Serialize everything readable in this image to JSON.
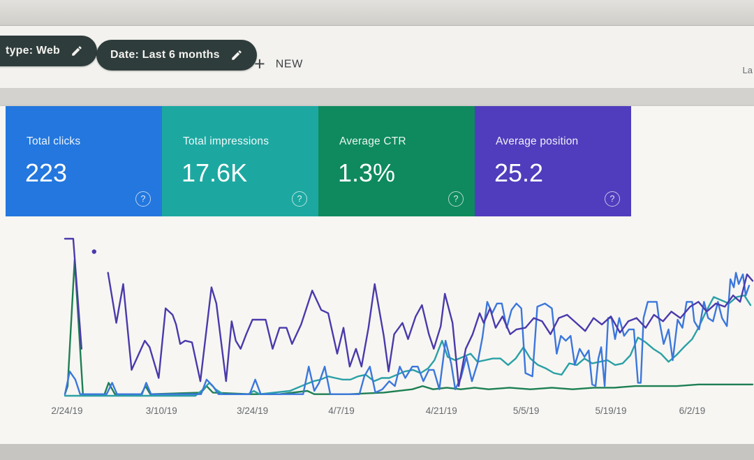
{
  "filter_bar": {
    "search_type_chip_label": "type: Web",
    "date_chip_label": "Date: Last 6 months",
    "new_button_plus": "+",
    "new_button_label": "NEW",
    "right_partial_text": "La"
  },
  "summary_cards": {
    "help_icon_glyph": "?",
    "cards": [
      {
        "label": "Total clicks",
        "value": "223",
        "color": "#2377de"
      },
      {
        "label": "Total impressions",
        "value": "17.6K",
        "color": "#1ca8a1"
      },
      {
        "label": "Average CTR",
        "value": "1.3%",
        "color": "#0e8a5e"
      },
      {
        "label": "Average position",
        "value": "25.2",
        "color": "#4f3dbd"
      }
    ]
  },
  "chart_data": {
    "type": "line",
    "title": "",
    "xlabel": "",
    "ylabel": "",
    "grid": false,
    "legend_position": "none (colors match summary cards)",
    "y_axis_note": "no y axis shown; values are percent of plot height, each series auto-scaled",
    "ylim": [
      0,
      100
    ],
    "x_tick_labels": [
      "2/24/19",
      "3/10/19",
      "3/24/19",
      "4/7/19",
      "4/21/19",
      "5/5/19",
      "5/19/19",
      "6/2/19"
    ],
    "x_tick_positions_pct": [
      1.1,
      14.7,
      27.8,
      40.6,
      55.0,
      67.2,
      79.4,
      91.1
    ],
    "series": [
      {
        "name": "Average CTR",
        "color": "#1d7f52",
        "points": [
          [
            0.8,
            1
          ],
          [
            1.2,
            6
          ],
          [
            2.2,
            84
          ],
          [
            3.4,
            1
          ],
          [
            6.5,
            1
          ],
          [
            7.1,
            8
          ],
          [
            8.0,
            1
          ],
          [
            11.8,
            1
          ],
          [
            12.4,
            6
          ],
          [
            13.1,
            1
          ],
          [
            20.4,
            2
          ],
          [
            21.2,
            6
          ],
          [
            22.1,
            2
          ],
          [
            27.5,
            1
          ],
          [
            31.7,
            1
          ],
          [
            35.7,
            3
          ],
          [
            36.7,
            1
          ],
          [
            41.7,
            1
          ],
          [
            46.7,
            2
          ],
          [
            50.8,
            4
          ],
          [
            52.3,
            6
          ],
          [
            53.8,
            4
          ],
          [
            55.8,
            5
          ],
          [
            57.8,
            4
          ],
          [
            59.8,
            5
          ],
          [
            61.8,
            4
          ],
          [
            64.8,
            5
          ],
          [
            67.8,
            4
          ],
          [
            70.9,
            5
          ],
          [
            73.9,
            4
          ],
          [
            76.9,
            5
          ],
          [
            79.9,
            5
          ],
          [
            82.9,
            6
          ],
          [
            85.9,
            6
          ],
          [
            88.9,
            6
          ],
          [
            92.0,
            7
          ],
          [
            95.0,
            7
          ],
          [
            98.0,
            7
          ],
          [
            99.8,
            7
          ]
        ]
      },
      {
        "name": "Total impressions",
        "color": "#2aa0a4",
        "points": [
          [
            0.8,
            0
          ],
          [
            19.6,
            0
          ],
          [
            20.7,
            4
          ],
          [
            21.6,
            8
          ],
          [
            22.5,
            4
          ],
          [
            23.6,
            1
          ],
          [
            27.2,
            1
          ],
          [
            28.0,
            3
          ],
          [
            28.8,
            1
          ],
          [
            33.2,
            3
          ],
          [
            34.3,
            5
          ],
          [
            35.4,
            7
          ],
          [
            36.6,
            9
          ],
          [
            37.6,
            10
          ],
          [
            38.7,
            12
          ],
          [
            39.7,
            11
          ],
          [
            40.8,
            10
          ],
          [
            41.9,
            10
          ],
          [
            43.0,
            12
          ],
          [
            44.1,
            13
          ],
          [
            45.3,
            9
          ],
          [
            46.4,
            11
          ],
          [
            47.5,
            11
          ],
          [
            48.6,
            13
          ],
          [
            49.7,
            15
          ],
          [
            50.9,
            16
          ],
          [
            52.0,
            14
          ],
          [
            53.1,
            17
          ],
          [
            54.0,
            22
          ],
          [
            55.1,
            34
          ],
          [
            55.9,
            24
          ],
          [
            57.0,
            22
          ],
          [
            58.1,
            24
          ],
          [
            59.2,
            26
          ],
          [
            60.2,
            21
          ],
          [
            61.3,
            22
          ],
          [
            62.4,
            23
          ],
          [
            63.5,
            23
          ],
          [
            64.6,
            19
          ],
          [
            65.7,
            23
          ],
          [
            66.8,
            30
          ],
          [
            67.8,
            23
          ],
          [
            68.9,
            19
          ],
          [
            70.0,
            17
          ],
          [
            71.2,
            14
          ],
          [
            72.3,
            13
          ],
          [
            73.4,
            20
          ],
          [
            74.5,
            19
          ],
          [
            75.6,
            23
          ],
          [
            76.7,
            20
          ],
          [
            77.8,
            21
          ],
          [
            78.9,
            22
          ],
          [
            80.0,
            19
          ],
          [
            81.1,
            20
          ],
          [
            82.2,
            25
          ],
          [
            83.3,
            36
          ],
          [
            84.4,
            33
          ],
          [
            85.5,
            29
          ],
          [
            86.6,
            26
          ],
          [
            87.7,
            21
          ],
          [
            88.8,
            25
          ],
          [
            89.9,
            30
          ],
          [
            91.1,
            35
          ],
          [
            92.0,
            42
          ],
          [
            93.1,
            52
          ],
          [
            94.2,
            61
          ],
          [
            95.3,
            59
          ],
          [
            96.4,
            57
          ],
          [
            97.5,
            61
          ],
          [
            98.6,
            62
          ],
          [
            99.5,
            56
          ]
        ]
      },
      {
        "name": "Total clicks",
        "color": "#3b77dc",
        "points": [
          [
            0.8,
            1
          ],
          [
            1.5,
            15
          ],
          [
            2.3,
            10
          ],
          [
            3.0,
            1
          ],
          [
            6.8,
            1
          ],
          [
            7.6,
            8
          ],
          [
            8.3,
            1
          ],
          [
            11.9,
            1
          ],
          [
            12.5,
            8
          ],
          [
            13.2,
            1
          ],
          [
            20.4,
            1
          ],
          [
            21.2,
            10
          ],
          [
            22.1,
            6
          ],
          [
            22.9,
            1
          ],
          [
            27.4,
            1
          ],
          [
            28.2,
            10
          ],
          [
            29.0,
            1
          ],
          [
            35.1,
            1
          ],
          [
            35.9,
            18
          ],
          [
            36.7,
            3
          ],
          [
            37.4,
            8
          ],
          [
            38.2,
            18
          ],
          [
            39.0,
            1
          ],
          [
            43.2,
            1
          ],
          [
            43.9,
            12
          ],
          [
            44.7,
            18
          ],
          [
            45.5,
            2
          ],
          [
            46.5,
            4
          ],
          [
            47.5,
            9
          ],
          [
            48.3,
            6
          ],
          [
            49.0,
            18
          ],
          [
            49.8,
            11
          ],
          [
            50.8,
            18
          ],
          [
            51.6,
            18
          ],
          [
            52.4,
            9
          ],
          [
            53.2,
            16
          ],
          [
            53.9,
            16
          ],
          [
            54.7,
            4
          ],
          [
            55.6,
            34
          ],
          [
            56.4,
            20
          ],
          [
            57.0,
            4
          ],
          [
            57.8,
            11
          ],
          [
            58.6,
            24
          ],
          [
            59.4,
            9
          ],
          [
            60.2,
            20
          ],
          [
            60.9,
            36
          ],
          [
            61.6,
            58
          ],
          [
            62.3,
            51
          ],
          [
            63.0,
            57
          ],
          [
            63.7,
            57
          ],
          [
            64.4,
            42
          ],
          [
            65.1,
            53
          ],
          [
            65.8,
            57
          ],
          [
            66.5,
            54
          ],
          [
            67.1,
            14
          ],
          [
            68.1,
            12
          ],
          [
            68.8,
            55
          ],
          [
            69.9,
            57
          ],
          [
            70.9,
            54
          ],
          [
            71.6,
            26
          ],
          [
            72.2,
            37
          ],
          [
            72.9,
            34
          ],
          [
            73.6,
            37
          ],
          [
            74.2,
            19
          ],
          [
            74.9,
            29
          ],
          [
            75.6,
            24
          ],
          [
            76.2,
            28
          ],
          [
            76.7,
            7
          ],
          [
            77.2,
            6
          ],
          [
            77.6,
            23
          ],
          [
            78.0,
            30
          ],
          [
            78.5,
            6
          ],
          [
            79.0,
            48
          ],
          [
            79.5,
            48
          ],
          [
            80.0,
            35
          ],
          [
            80.6,
            48
          ],
          [
            81.3,
            37
          ],
          [
            82.0,
            41
          ],
          [
            82.7,
            41
          ],
          [
            83.3,
            8
          ],
          [
            83.7,
            8
          ],
          [
            84.1,
            48
          ],
          [
            84.7,
            58
          ],
          [
            85.4,
            58
          ],
          [
            86.0,
            58
          ],
          [
            86.3,
            48
          ],
          [
            87.0,
            32
          ],
          [
            87.7,
            41
          ],
          [
            88.3,
            22
          ],
          [
            89.0,
            47
          ],
          [
            89.7,
            42
          ],
          [
            90.3,
            58
          ],
          [
            91.1,
            58
          ],
          [
            91.4,
            46
          ],
          [
            92.1,
            41
          ],
          [
            92.8,
            58
          ],
          [
            93.4,
            48
          ],
          [
            94.1,
            46
          ],
          [
            94.8,
            58
          ],
          [
            95.4,
            48
          ],
          [
            96.1,
            43
          ],
          [
            96.6,
            72
          ],
          [
            97.1,
            67
          ],
          [
            97.4,
            76
          ],
          [
            97.8,
            69
          ],
          [
            98.4,
            75
          ],
          [
            98.8,
            62
          ],
          [
            99.3,
            68
          ]
        ]
      },
      {
        "name": "Average position",
        "color": "#4a3aab",
        "points": [
          [
            0.8,
            97
          ],
          [
            2.0,
            97
          ],
          [
            3.2,
            29
          ],
          null,
          [
            5.0,
            89
          ],
          null,
          [
            7.0,
            76
          ],
          [
            8.2,
            45
          ],
          [
            9.2,
            69
          ],
          [
            10.4,
            16
          ],
          [
            12.3,
            34
          ],
          [
            13.0,
            30
          ],
          [
            14.3,
            11
          ],
          [
            15.3,
            54
          ],
          [
            16.3,
            50
          ],
          [
            16.8,
            44
          ],
          [
            17.4,
            32
          ],
          [
            18.1,
            34
          ],
          [
            19.1,
            33
          ],
          [
            20.3,
            9
          ],
          [
            21.9,
            67
          ],
          [
            22.6,
            57
          ],
          [
            24.0,
            9
          ],
          [
            24.8,
            46
          ],
          [
            25.4,
            34
          ],
          [
            26.1,
            29
          ],
          [
            26.9,
            38
          ],
          [
            27.8,
            47
          ],
          [
            28.9,
            47
          ],
          [
            29.7,
            47
          ],
          [
            30.7,
            29
          ],
          [
            31.7,
            42
          ],
          [
            32.7,
            42
          ],
          [
            33.5,
            32
          ],
          [
            34.8,
            44
          ],
          [
            36.4,
            65
          ],
          [
            37.7,
            53
          ],
          [
            38.7,
            51
          ],
          [
            40.0,
            26
          ],
          [
            40.9,
            42
          ],
          [
            41.8,
            18
          ],
          [
            42.7,
            29
          ],
          [
            43.5,
            18
          ],
          [
            44.5,
            42
          ],
          [
            45.4,
            69
          ],
          [
            46.7,
            37
          ],
          [
            47.4,
            15
          ],
          [
            48.2,
            38
          ],
          [
            49.4,
            45
          ],
          [
            50.2,
            35
          ],
          [
            51.3,
            49
          ],
          [
            52.2,
            56
          ],
          [
            53.2,
            38
          ],
          [
            53.9,
            29
          ],
          [
            54.9,
            43
          ],
          [
            55.5,
            63
          ],
          [
            56.6,
            45
          ],
          [
            57.5,
            6
          ],
          [
            58.5,
            29
          ],
          [
            59.5,
            38
          ],
          [
            60.5,
            51
          ],
          [
            61.1,
            45
          ],
          [
            62.0,
            54
          ],
          [
            62.8,
            42
          ],
          [
            63.8,
            49
          ],
          [
            64.9,
            38
          ],
          [
            65.8,
            41
          ],
          [
            67.1,
            42
          ],
          [
            68.3,
            48
          ],
          [
            69.5,
            46
          ],
          [
            70.7,
            38
          ],
          [
            71.9,
            48
          ],
          [
            73.1,
            50
          ],
          [
            74.4,
            45
          ],
          [
            75.7,
            40
          ],
          [
            76.9,
            48
          ],
          [
            78.1,
            44
          ],
          [
            79.4,
            49
          ],
          [
            80.7,
            39
          ],
          [
            81.9,
            46
          ],
          [
            83.1,
            48
          ],
          [
            84.4,
            42
          ],
          [
            85.6,
            50
          ],
          [
            86.9,
            46
          ],
          [
            88.1,
            52
          ],
          [
            89.4,
            48
          ],
          [
            90.8,
            55
          ],
          [
            92.0,
            58
          ],
          [
            93.2,
            52
          ],
          [
            94.5,
            57
          ],
          [
            95.8,
            55
          ],
          [
            97.0,
            62
          ],
          [
            98.0,
            58
          ],
          [
            99.0,
            75
          ],
          [
            99.8,
            71
          ]
        ]
      }
    ]
  }
}
